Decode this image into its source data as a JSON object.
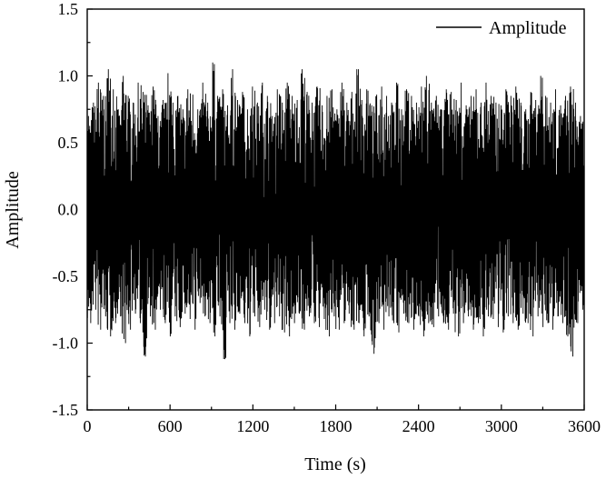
{
  "chart_data": {
    "type": "line",
    "title": "",
    "xlabel": "Time (s)",
    "ylabel": "Amplitude",
    "xlim": [
      0,
      3600
    ],
    "ylim": [
      -1.5,
      1.5
    ],
    "x_ticks": [
      0,
      600,
      1200,
      1800,
      2400,
      3000,
      3600
    ],
    "x_tick_labels": [
      "0",
      "600",
      "1200",
      "1800",
      "2400",
      "3000",
      "3600"
    ],
    "y_ticks": [
      1.5,
      1.0,
      0.5,
      0.0,
      -0.5,
      -1.0,
      -1.5
    ],
    "y_tick_labels": [
      "1.5",
      "1.0",
      "0.5",
      "0.0",
      "-0.5",
      "-1.0",
      "-1.5"
    ],
    "grid": false,
    "legend": {
      "position": "top-right",
      "entries": [
        "Amplitude"
      ]
    },
    "series": [
      {
        "name": "Amplitude",
        "color": "#000000",
        "x_start": 0,
        "x_step": 36,
        "upper": [
          0.7,
          0.8,
          0.95,
          0.85,
          1.05,
          0.9,
          0.75,
          1.0,
          0.85,
          0.8,
          0.95,
          0.88,
          0.78,
          0.92,
          0.7,
          0.82,
          1.02,
          0.8,
          0.85,
          0.75,
          0.9,
          0.86,
          0.75,
          0.95,
          0.8,
          1.1,
          0.85,
          0.9,
          0.78,
          1.05,
          0.82,
          0.88,
          0.75,
          0.92,
          0.8,
          0.95,
          0.85,
          0.7,
          0.9,
          0.8,
          0.95,
          0.85,
          0.82,
          1.05,
          0.88,
          0.8,
          0.92,
          0.78,
          0.85,
          0.9,
          0.75,
          0.95,
          0.8,
          0.88,
          1.05,
          0.82,
          0.9,
          0.78,
          0.86,
          0.92,
          0.85,
          0.8,
          0.95,
          0.75,
          0.9,
          0.85,
          0.8,
          0.92,
          1.0,
          0.8,
          0.85,
          0.75,
          0.9,
          0.88,
          0.82,
          0.95,
          0.78,
          0.85,
          0.9,
          0.8,
          0.95,
          0.85,
          0.8,
          0.78,
          0.9,
          0.85,
          0.92,
          0.8,
          0.75,
          0.88,
          0.82,
          1.0,
          0.85,
          0.8,
          0.9,
          0.78,
          0.85,
          0.92,
          0.8,
          0.7
        ],
        "lower": [
          -0.85,
          -0.75,
          -0.9,
          -0.8,
          -0.95,
          -0.85,
          -0.8,
          -1.0,
          -0.9,
          -0.78,
          -0.85,
          -1.1,
          -0.8,
          -0.9,
          -0.75,
          -0.85,
          -0.95,
          -0.8,
          -0.88,
          -0.78,
          -0.82,
          -0.9,
          -0.7,
          -0.8,
          -0.85,
          -0.95,
          -0.8,
          -1.12,
          -0.85,
          -0.9,
          -0.78,
          -0.85,
          -0.95,
          -0.8,
          -0.88,
          -0.75,
          -0.9,
          -0.85,
          -0.8,
          -0.92,
          -0.95,
          -0.85,
          -0.78,
          -0.9,
          -0.8,
          -0.85,
          -0.88,
          -0.82,
          -0.95,
          -0.8,
          -0.9,
          -0.85,
          -0.78,
          -0.9,
          -0.85,
          -0.95,
          -0.8,
          -1.08,
          -0.85,
          -0.9,
          -0.8,
          -0.85,
          -0.92,
          -0.78,
          -0.85,
          -0.9,
          -0.8,
          -0.95,
          -0.85,
          -0.88,
          -0.8,
          -0.85,
          -0.9,
          -0.78,
          -0.95,
          -0.85,
          -0.8,
          -0.9,
          -0.85,
          -0.95,
          -0.8,
          -0.82,
          -0.88,
          -0.92,
          -0.8,
          -0.85,
          -0.9,
          -0.78,
          -0.85,
          -0.95,
          -0.8,
          -0.88,
          -0.85,
          -0.9,
          -0.8,
          -0.85,
          -0.95,
          -1.1,
          -0.85,
          -0.75
        ]
      }
    ]
  }
}
